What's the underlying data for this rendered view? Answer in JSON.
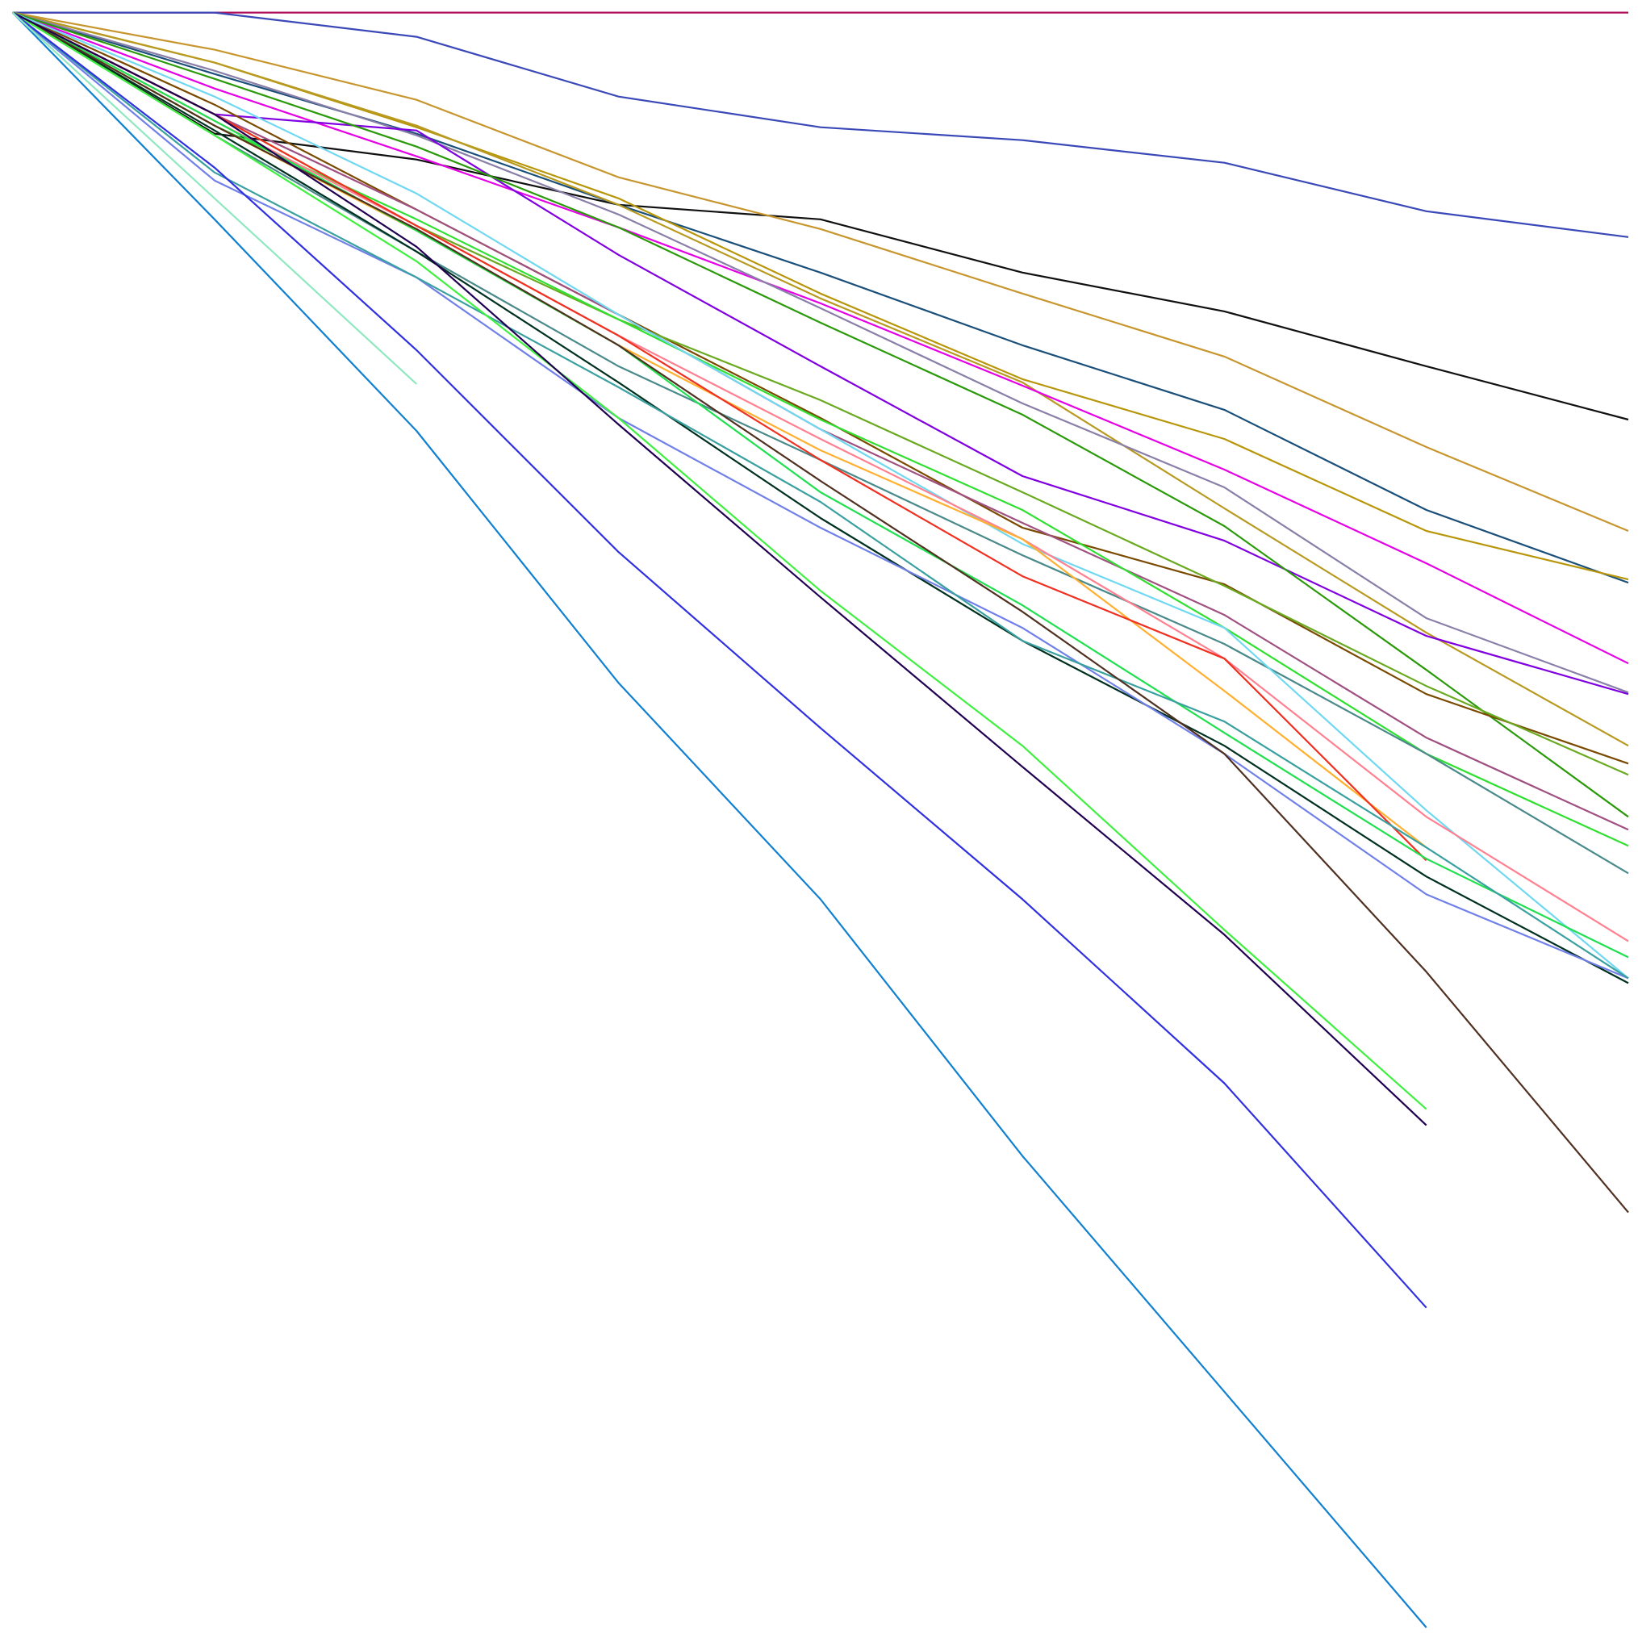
{
  "chart_data": {
    "type": "line",
    "title": "",
    "xlabel": "",
    "ylabel": "",
    "x": [
      0,
      1,
      2,
      3,
      4,
      5,
      6,
      7,
      8
    ],
    "xlim": [
      0,
      8
    ],
    "ylim": [
      -100,
      0
    ],
    "grid": false,
    "legend": "none",
    "series": [
      {
        "color": "#b0105a",
        "values": [
          0,
          0,
          0,
          0,
          0,
          0,
          0,
          0,
          0
        ]
      },
      {
        "color": "#3a48b8",
        "values": [
          0,
          0,
          -1.5,
          -5.2,
          -7.1,
          -7.9,
          -9.3,
          -12.3,
          -13.9
        ]
      },
      {
        "color": "#101010",
        "values": [
          0,
          -7.5,
          -9.1,
          -11.9,
          -12.8,
          -16.1,
          -18.5,
          -21.9,
          -25.2
        ]
      },
      {
        "color": "#c8962e",
        "values": [
          0,
          -2.3,
          -5.4,
          -10.2,
          -13.4,
          -17.4,
          -21.3,
          -26.9,
          -32.1
        ]
      },
      {
        "color": "#1a4f7a",
        "values": [
          0,
          -3.8,
          -7.5,
          -11.9,
          -16.1,
          -20.6,
          -24.6,
          -30.8,
          -35.3
        ]
      },
      {
        "color": "#b8960a",
        "values": [
          0,
          -3.1,
          -7.1,
          -11.5,
          -17.4,
          -22.7,
          -26.4,
          -32.1,
          -35.1
        ]
      },
      {
        "color": "#b89a20",
        "values": [
          0,
          -3.1,
          -7.0,
          -11.9,
          -17.7,
          -22.9,
          -30.7,
          -38.4,
          -45.4
        ]
      },
      {
        "color": "#e600e6",
        "values": [
          0,
          -4.7,
          -8.9,
          -13.3,
          -18.0,
          -23.1,
          -28.3,
          -34.1,
          -40.3
        ]
      },
      {
        "color": "#8a7fa8",
        "values": [
          0,
          -3.6,
          -7.6,
          -12.5,
          -18.3,
          -24.2,
          -29.4,
          -37.5,
          -42.1
        ]
      },
      {
        "color": "#8000e0",
        "values": [
          0,
          -6.3,
          -7.3,
          -15.0,
          -21.9,
          -28.7,
          -32.7,
          -38.6,
          -42.2
        ]
      },
      {
        "color": "#2a9a0a",
        "values": [
          0,
          -4.1,
          -8.3,
          -13.3,
          -19.2,
          -24.9,
          -31.8,
          -40.7,
          -49.8
        ]
      },
      {
        "color": "#7a4a00",
        "values": [
          0,
          -5.7,
          -12.2,
          -18.7,
          -25.1,
          -31.9,
          -35.4,
          -42.2,
          -46.5
        ]
      },
      {
        "color": "#6aaa20",
        "values": [
          0,
          -6.3,
          -13.2,
          -19.0,
          -24.0,
          -29.7,
          -35.5,
          -41.7,
          -47.2
        ]
      },
      {
        "color": "#a05080",
        "values": [
          0,
          -6.3,
          -12.2,
          -18.7,
          -25.8,
          -31.6,
          -37.3,
          -44.9,
          -50.6
        ]
      },
      {
        "color": "#30e030",
        "values": [
          0,
          -7.0,
          -12.8,
          -19.0,
          -25.2,
          -30.8,
          -38.1,
          -45.9,
          -51.6
        ]
      },
      {
        "color": "#4a8a8a",
        "values": [
          0,
          -7.6,
          -14.8,
          -21.9,
          -27.7,
          -33.6,
          -39.1,
          -45.9,
          -53.3
        ]
      },
      {
        "color": "#70d8f0",
        "values": [
          0,
          -5.2,
          -11.2,
          -18.7,
          -25.8,
          -32.9,
          -38.1,
          -49.4,
          -59.8
        ]
      },
      {
        "color": "#ff8090",
        "values": [
          0,
          -6.7,
          -13.2,
          -20.0,
          -26.4,
          -32.6,
          -40.0,
          -49.8,
          -57.5
        ]
      },
      {
        "color": "#ffb030",
        "values": [
          0,
          -7.0,
          -13.5,
          -20.6,
          -27.1,
          -32.6,
          -42.0,
          -51.7,
          null
        ]
      },
      {
        "color": "#f03020",
        "values": [
          0,
          -6.3,
          -13.2,
          -20.0,
          -27.7,
          -34.9,
          -40.0,
          -52.5,
          null
        ]
      },
      {
        "color": "#20e050",
        "values": [
          0,
          -6.7,
          -13.5,
          -20.6,
          -29.7,
          -36.7,
          -44.6,
          -52.4,
          -58.5
        ]
      },
      {
        "color": "#003020",
        "values": [
          0,
          -7.3,
          -14.8,
          -22.9,
          -31.3,
          -38.9,
          -45.4,
          -53.5,
          -60.1
        ]
      },
      {
        "color": "#7080e8",
        "values": [
          0,
          -10.4,
          -16.4,
          -25.1,
          -31.9,
          -38.1,
          -45.9,
          -54.6,
          -59.8
        ]
      },
      {
        "color": "#3aa0a0",
        "values": [
          0,
          -9.9,
          -16.4,
          -23.2,
          -30.3,
          -38.9,
          -43.9,
          -51.7,
          -59.8
        ]
      },
      {
        "color": "#503020",
        "values": [
          0,
          -7.0,
          -13.4,
          -20.6,
          -29.0,
          -37.1,
          -45.9,
          -59.4,
          -74.3
        ]
      },
      {
        "color": "#40f040",
        "values": [
          0,
          -7.6,
          -15.4,
          -25.1,
          -35.8,
          -45.4,
          -56.8,
          -67.9,
          null
        ]
      },
      {
        "color": "#200050",
        "values": [
          0,
          -6.3,
          -14.5,
          -25.5,
          -36.2,
          -46.7,
          -57.1,
          -68.9,
          null
        ]
      },
      {
        "color": "#3030e0",
        "values": [
          0,
          -9.6,
          -20.9,
          -33.4,
          -44.3,
          -54.9,
          -66.3,
          -80.2,
          null
        ]
      },
      {
        "color": "#1080d0",
        "values": [
          0,
          -12.8,
          -25.9,
          -41.5,
          -54.9,
          -70.8,
          -85.4,
          -100,
          null
        ]
      },
      {
        "color": "#90e8c0",
        "values": [
          0,
          -11.5,
          -23.0,
          null,
          null,
          null,
          null,
          null,
          null
        ]
      }
    ]
  }
}
